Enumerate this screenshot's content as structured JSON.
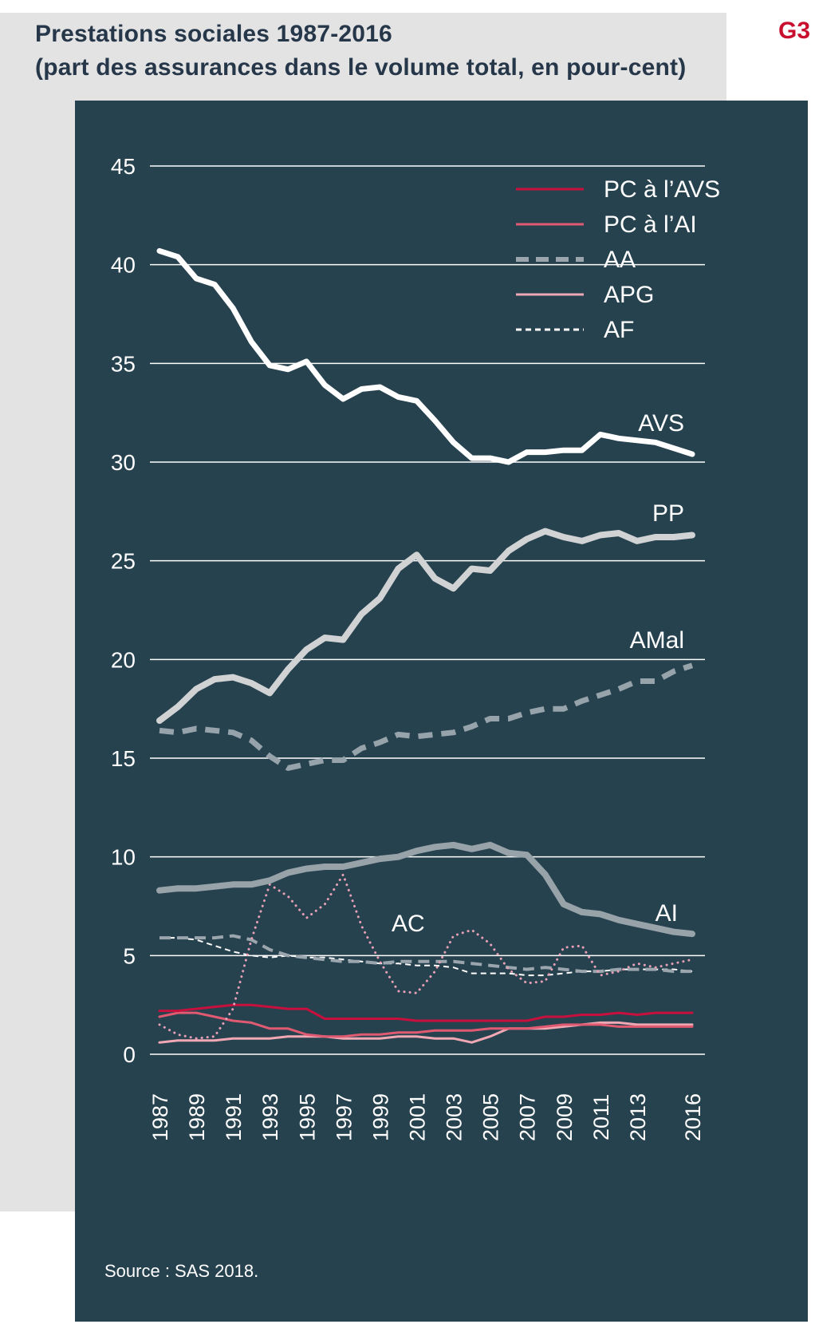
{
  "header": {
    "title_line1": "Prestations sociales 1987-2016",
    "title_line2": "(part des assurances dans le volume total, en pour-cent)",
    "tag": "G3"
  },
  "source": "Source : SAS 2018.",
  "colors": {
    "panel_bg": "#27424f",
    "page_grey": "#e3e3e4",
    "title_text": "#27374a",
    "tag_red": "#c8102e",
    "grid": "#ffffff"
  },
  "chart_data": {
    "type": "line",
    "title": "Prestations sociales 1987-2016",
    "subtitle": "(part des assurances dans le volume total, en pour-cent)",
    "ylim": [
      0,
      45
    ],
    "yticks": [
      0,
      5,
      10,
      15,
      20,
      25,
      30,
      35,
      40,
      45
    ],
    "xtick_labels": [
      "1987",
      "1989",
      "1991",
      "1993",
      "1995",
      "1997",
      "1999",
      "2001",
      "2003",
      "2005",
      "2007",
      "2009",
      "2011",
      "2013",
      "2016"
    ],
    "x": [
      1987,
      1988,
      1989,
      1990,
      1991,
      1992,
      1993,
      1994,
      1995,
      1996,
      1997,
      1998,
      1999,
      2000,
      2001,
      2002,
      2003,
      2004,
      2005,
      2006,
      2007,
      2008,
      2009,
      2010,
      2011,
      2012,
      2013,
      2014,
      2015,
      2016
    ],
    "legend": [
      "PC à l’AVS",
      "PC à l’AI",
      "AA",
      "APG",
      "AF"
    ],
    "legend_position": "top-right",
    "series": [
      {
        "name": "AVS",
        "color": "#ffffff",
        "style": "solid",
        "width": 7,
        "values": [
          40.7,
          40.4,
          39.3,
          39.0,
          37.8,
          36.1,
          34.9,
          34.7,
          35.1,
          33.9,
          33.2,
          33.7,
          33.8,
          33.3,
          33.1,
          32.1,
          31.0,
          30.2,
          30.2,
          30.0,
          30.5,
          30.5,
          30.6,
          30.6,
          31.4,
          31.2,
          31.1,
          31.0,
          30.7,
          30.4
        ]
      },
      {
        "name": "PP",
        "color": "#d0d2d4",
        "style": "solid",
        "width": 8,
        "values": [
          16.9,
          17.6,
          18.5,
          19.0,
          19.1,
          18.8,
          18.3,
          19.5,
          20.5,
          21.1,
          21.0,
          22.3,
          23.1,
          24.6,
          25.3,
          24.1,
          23.6,
          24.6,
          24.5,
          25.5,
          26.1,
          26.5,
          26.2,
          26.0,
          26.3,
          26.4,
          26.0,
          26.2,
          26.2,
          26.3
        ]
      },
      {
        "name": "AMal",
        "color": "#96a3aa",
        "style": "dash-thick",
        "width": 7,
        "values": [
          16.4,
          16.3,
          16.5,
          16.4,
          16.3,
          15.9,
          15.1,
          14.5,
          14.7,
          14.9,
          14.9,
          15.5,
          15.8,
          16.2,
          16.1,
          16.2,
          16.3,
          16.6,
          17.0,
          17.0,
          17.3,
          17.5,
          17.5,
          17.9,
          18.2,
          18.5,
          18.9,
          18.9,
          19.4,
          19.7
        ]
      },
      {
        "name": "AI",
        "color": "#98a2a9",
        "style": "solid",
        "width": 8,
        "values": [
          8.3,
          8.4,
          8.4,
          8.5,
          8.6,
          8.6,
          8.8,
          9.2,
          9.4,
          9.5,
          9.5,
          9.7,
          9.9,
          10.0,
          10.3,
          10.5,
          10.6,
          10.4,
          10.6,
          10.2,
          10.1,
          9.1,
          7.6,
          7.2,
          7.1,
          6.8,
          6.6,
          6.4,
          6.2,
          6.1
        ]
      },
      {
        "name": "AC",
        "color": "#e8a0b6",
        "style": "dots",
        "width": 3,
        "values": [
          1.5,
          1.0,
          0.8,
          0.9,
          2.3,
          5.8,
          8.6,
          8.0,
          6.9,
          7.6,
          9.1,
          6.5,
          4.7,
          3.2,
          3.1,
          4.2,
          6.0,
          6.3,
          5.6,
          4.3,
          3.6,
          3.7,
          5.4,
          5.5,
          4.0,
          4.2,
          4.6,
          4.4,
          4.6,
          4.8
        ]
      },
      {
        "name": "AA",
        "color": "#9aa5ad",
        "style": "dashed",
        "width": 4,
        "values": [
          5.9,
          5.9,
          5.9,
          5.9,
          6.0,
          5.8,
          5.3,
          5.0,
          4.9,
          4.8,
          4.7,
          4.7,
          4.6,
          4.7,
          4.7,
          4.7,
          4.7,
          4.6,
          4.5,
          4.4,
          4.3,
          4.4,
          4.3,
          4.2,
          4.2,
          4.3,
          4.3,
          4.3,
          4.2,
          4.2
        ]
      },
      {
        "name": "AF",
        "color": "#ffffff",
        "style": "dashed-thin",
        "width": 2,
        "values": [
          5.9,
          5.9,
          5.8,
          5.5,
          5.2,
          5.0,
          4.9,
          5.0,
          4.9,
          4.9,
          4.8,
          4.7,
          4.6,
          4.6,
          4.5,
          4.5,
          4.4,
          4.1,
          4.1,
          4.1,
          4.0,
          4.0,
          4.1,
          4.2,
          4.2,
          4.3,
          4.3,
          4.3,
          4.3,
          4.2
        ]
      },
      {
        "name": "PC à l’AVS",
        "color": "#c8103e",
        "style": "solid",
        "width": 3,
        "values": [
          2.2,
          2.2,
          2.3,
          2.4,
          2.5,
          2.5,
          2.4,
          2.3,
          2.3,
          1.8,
          1.8,
          1.8,
          1.8,
          1.8,
          1.7,
          1.7,
          1.7,
          1.7,
          1.7,
          1.7,
          1.7,
          1.9,
          1.9,
          2.0,
          2.0,
          2.1,
          2.0,
          2.1,
          2.1,
          2.1
        ]
      },
      {
        "name": "PC à l’AI",
        "color": "#e05a72",
        "style": "solid",
        "width": 3,
        "values": [
          1.9,
          2.1,
          2.1,
          1.9,
          1.7,
          1.6,
          1.3,
          1.3,
          1.0,
          0.9,
          0.9,
          1.0,
          1.0,
          1.1,
          1.1,
          1.2,
          1.2,
          1.2,
          1.3,
          1.3,
          1.3,
          1.4,
          1.5,
          1.5,
          1.5,
          1.4,
          1.4,
          1.4,
          1.4,
          1.4
        ]
      },
      {
        "name": "APG",
        "color": "#f0a8b4",
        "style": "solid",
        "width": 3,
        "values": [
          0.6,
          0.7,
          0.7,
          0.7,
          0.8,
          0.8,
          0.8,
          0.9,
          0.9,
          0.9,
          0.8,
          0.8,
          0.8,
          0.9,
          0.9,
          0.8,
          0.8,
          0.6,
          0.9,
          1.3,
          1.3,
          1.3,
          1.4,
          1.5,
          1.6,
          1.6,
          1.5,
          1.5,
          1.5,
          1.5
        ]
      }
    ],
    "series_labels": [
      {
        "name": "AVS",
        "text": "AVS"
      },
      {
        "name": "PP",
        "text": "PP"
      },
      {
        "name": "AMal",
        "text": "AMal"
      },
      {
        "name": "AI",
        "text": "AI"
      },
      {
        "name": "AC",
        "text": "AC"
      }
    ]
  }
}
